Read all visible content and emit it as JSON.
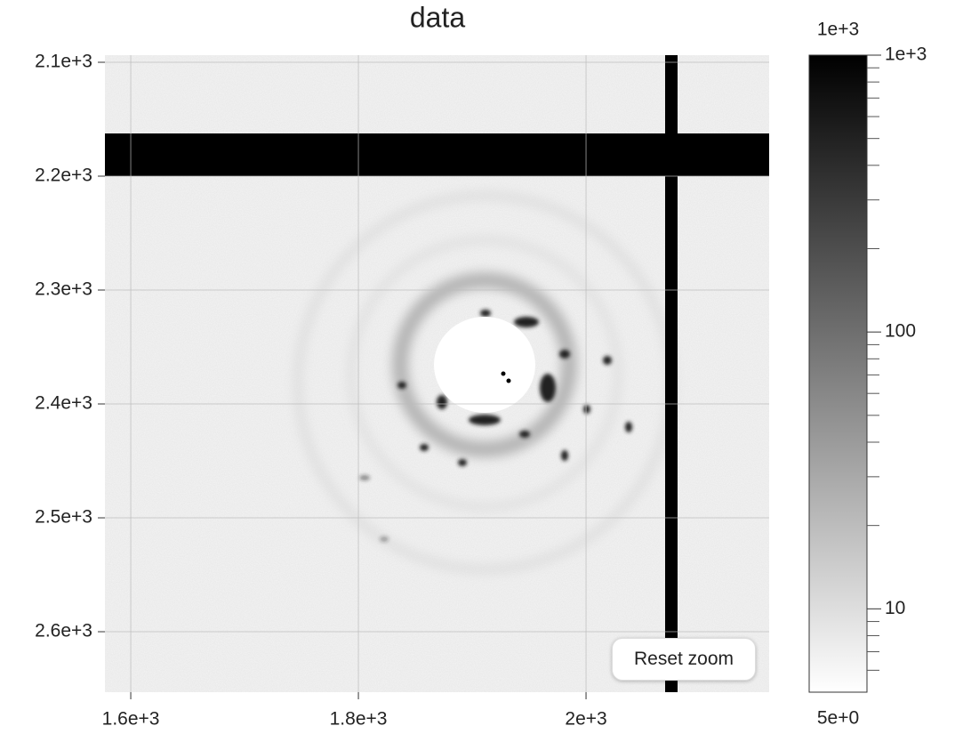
{
  "chart_data": {
    "type": "heatmap",
    "title": "data",
    "xlim": [
      1577.3,
      2160.9
    ],
    "xticks": [
      {
        "value": 1600,
        "label": "1.6e+3"
      },
      {
        "value": 1800,
        "label": "1.8e+3"
      },
      {
        "value": 2000,
        "label": "2e+3"
      }
    ],
    "ylim": [
      2093.75,
      2653.1
    ],
    "yticks": [
      {
        "value": 2100,
        "label": "2.1e+3"
      },
      {
        "value": 2200,
        "label": "2.2e+3"
      },
      {
        "value": 2300,
        "label": "2.3e+3"
      },
      {
        "value": 2400,
        "label": "2.4e+3"
      },
      {
        "value": 2500,
        "label": "2.5e+3"
      },
      {
        "value": 2600,
        "label": "2.6e+3"
      }
    ],
    "y_inverted": true,
    "grid": true,
    "colorbar": {
      "scale": "log",
      "range": [
        {
          "value": 5,
          "label": "5e+0"
        },
        {
          "value": 1000,
          "label": "1e+3"
        }
      ],
      "ticks": [
        10,
        100,
        {
          "value": 1000,
          "label": "1e+3"
        }
      ],
      "minor_ticks": [
        6,
        7,
        8,
        9,
        20,
        30,
        40,
        50,
        60,
        70,
        80,
        90,
        200,
        300,
        400,
        500,
        600,
        700,
        800,
        900
      ],
      "colors": [
        "#ffffff",
        "#000000"
      ]
    },
    "button": "Reset zoom"
  }
}
